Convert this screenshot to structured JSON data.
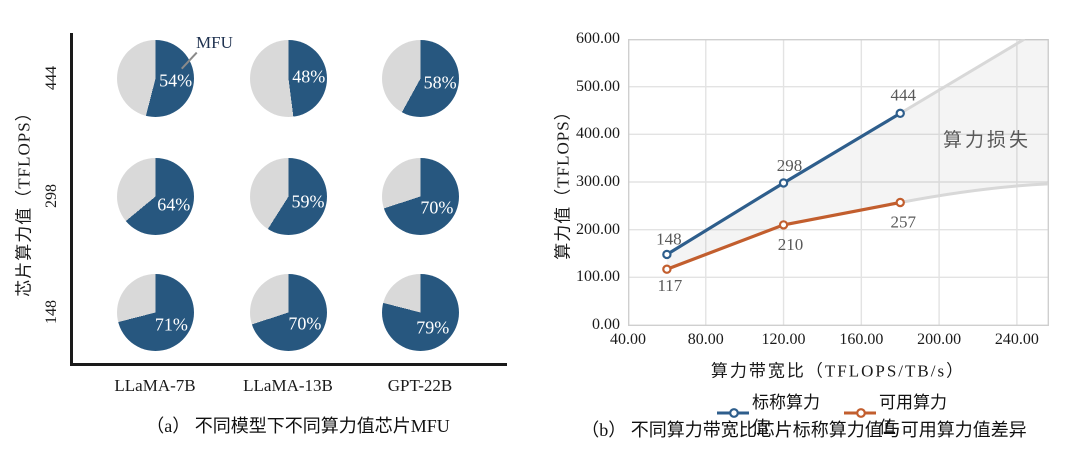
{
  "accent_colors": {
    "blue": "#2E5E8C",
    "pie_blue": "#27577F",
    "orange": "#C25E2E",
    "remainder_gray": "#D9D9D9",
    "grid_gray": "#E3E3E3",
    "projection_gray": "#D8D8D8",
    "label_gray": "#595959"
  },
  "chart_data": [
    {
      "type": "pie",
      "title": "（a） 不同模型下不同算力值芯片MFU",
      "ylabel": "芯片算力值（TFLOPS）",
      "row_labels": [
        "444",
        "298",
        "148"
      ],
      "col_labels": [
        "LLaMA-7B",
        "LLaMA-13B",
        "GPT-22B"
      ],
      "values_percent": [
        [
          54,
          48,
          58
        ],
        [
          64,
          59,
          70
        ],
        [
          71,
          70,
          79
        ]
      ],
      "annotation": "MFU",
      "slice_colors": {
        "mfu": "#27577F",
        "remainder": "#D9D9D9"
      }
    },
    {
      "type": "line",
      "title": "（b） 不同算力带宽比芯片标称算力值与可用算力值差异",
      "xlabel": "算力带宽比（TFLOPS/TB/s）",
      "ylabel": "算力值（TFLOPS）",
      "xlim": [
        40,
        256
      ],
      "ylim": [
        0,
        600
      ],
      "x_ticks": [
        "40.00",
        "80.00",
        "120.00",
        "160.00",
        "200.00",
        "240.00"
      ],
      "y_ticks": [
        "0.00",
        "100.00",
        "200.00",
        "300.00",
        "400.00",
        "500.00",
        "600.00"
      ],
      "x": [
        60,
        120,
        180
      ],
      "series": [
        {
          "name": "标称算力值",
          "color": "#2E5E8C",
          "values": [
            148,
            298,
            444
          ],
          "labels": [
            "148",
            "298",
            "444"
          ],
          "label_offsets": [
            [
              2,
              -16
            ],
            [
              6,
              -18
            ],
            [
              3,
              -19
            ]
          ]
        },
        {
          "name": "可用算力值",
          "color": "#C25E2E",
          "values": [
            117,
            210,
            257
          ],
          "labels": [
            "117",
            "210",
            "257"
          ],
          "label_offsets": [
            [
              3,
              16
            ],
            [
              7,
              19
            ],
            [
              3,
              19
            ]
          ]
        }
      ],
      "projection": {
        "upper": [
          [
            180,
            444
          ],
          [
            244,
            600
          ]
        ],
        "lower": [
          [
            180,
            257
          ],
          [
            220,
            283
          ],
          [
            256,
            296
          ]
        ],
        "fill_label": "算力损失",
        "line_color": "#D8D8D8",
        "fill_color": "rgba(130,130,130,0.09)"
      },
      "legend_position": "bottom",
      "grid": true
    }
  ]
}
